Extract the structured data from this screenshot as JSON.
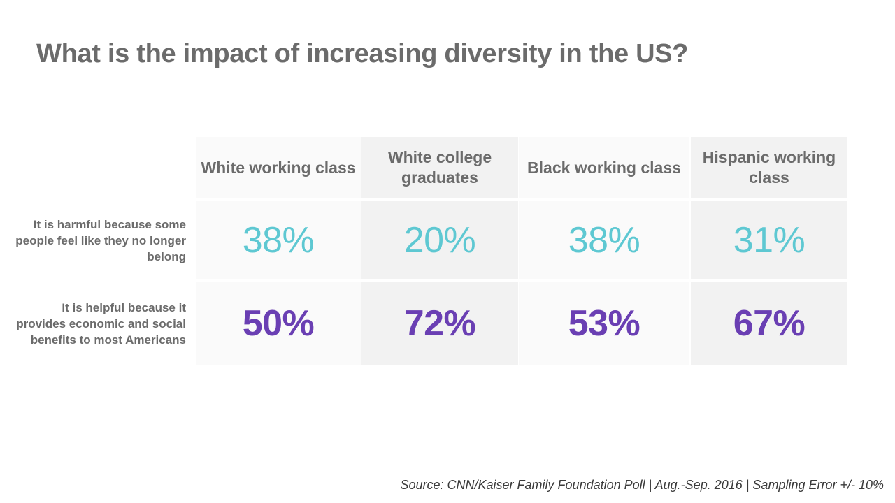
{
  "title": "What is the impact of increasing diversity in the US?",
  "chart_data": {
    "type": "table",
    "title": "What is the impact of increasing diversity in the US?",
    "columns": [
      "White working class",
      "White college graduates",
      "Black working class",
      "Hispanic working class"
    ],
    "rows": [
      {
        "label": "It is harmful because some people feel like they no longer belong",
        "values": [
          "38%",
          "20%",
          "38%",
          "31%"
        ]
      },
      {
        "label": "It is helpful because it provides economic and social benefits to most Americans",
        "values": [
          "50%",
          "72%",
          "53%",
          "67%"
        ]
      }
    ]
  },
  "colors": {
    "harmful": "#5ec8d2",
    "helpful": "#6a3fb3",
    "text": "#6b6b6b"
  },
  "source": "Source: CNN/Kaiser Family Foundation Poll | Aug.-Sep. 2016 | Sampling Error +/- 10%"
}
